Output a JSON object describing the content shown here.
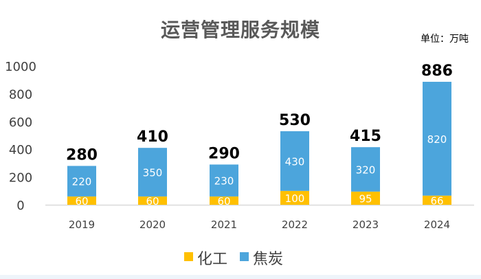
{
  "chart_data": {
    "type": "bar",
    "stacked": true,
    "title": "运营管理服务规模",
    "unit_label": "单位：万吨",
    "categories": [
      "2019",
      "2020",
      "2021",
      "2022",
      "2023",
      "2024"
    ],
    "series": [
      {
        "name": "化工",
        "color": "#ffc000",
        "values": [
          60,
          60,
          60,
          100,
          95,
          66
        ],
        "value_labels": [
          "60",
          "60",
          "60",
          "100",
          "95",
          "66"
        ]
      },
      {
        "name": "焦炭",
        "color": "#4ca5dc",
        "values": [
          220,
          350,
          230,
          430,
          320,
          820
        ],
        "value_labels": [
          "220",
          "350",
          "230",
          "430",
          "320",
          "820"
        ]
      }
    ],
    "totals": [
      "280",
      "410",
      "290",
      "530",
      "415",
      "886"
    ],
    "yticks": [
      "0",
      "200",
      "400",
      "600",
      "800",
      "1000"
    ],
    "ylim": [
      0,
      1000
    ],
    "legend_position": "bottom",
    "xlabel": "",
    "ylabel": ""
  }
}
